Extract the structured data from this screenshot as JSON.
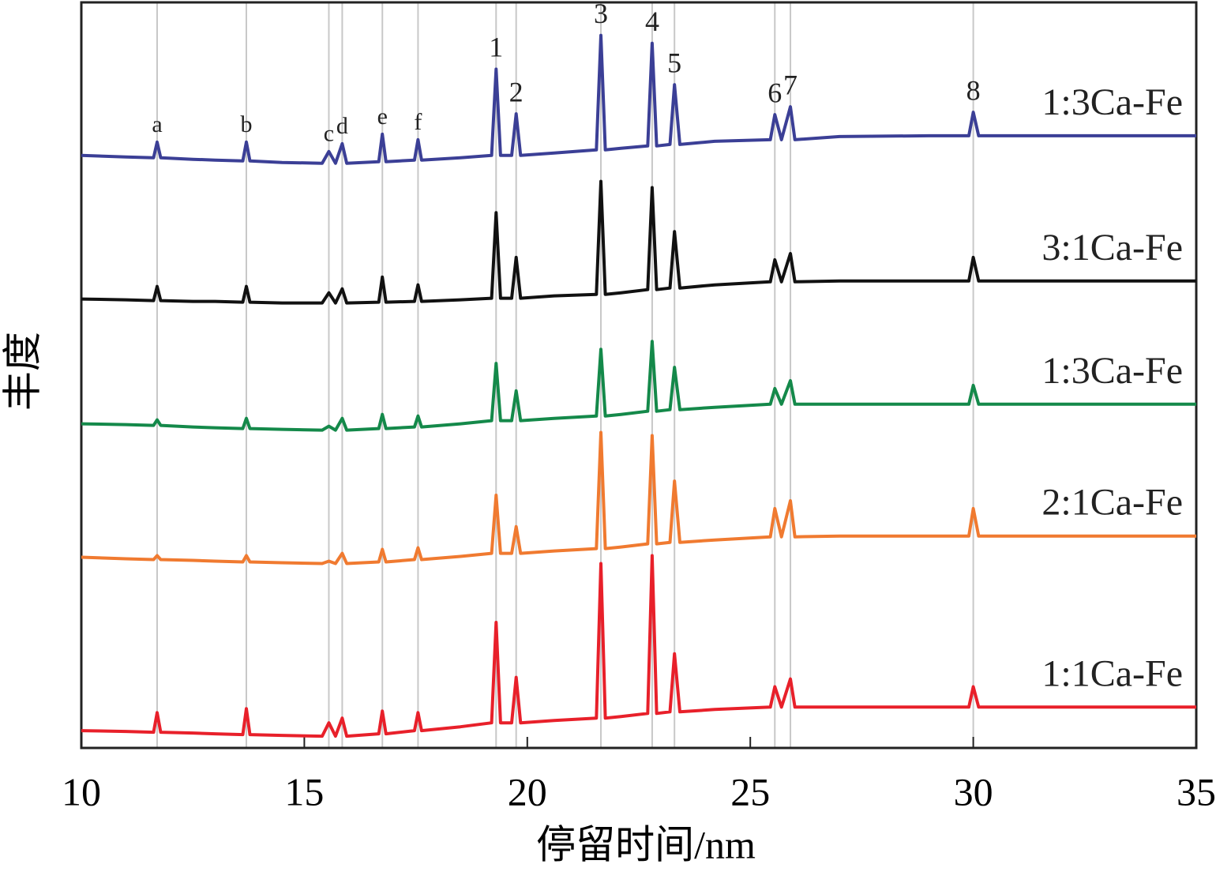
{
  "chart_data": {
    "type": "line",
    "xlabel": "停留时间/nm",
    "ylabel": "丰度",
    "xlim": [
      10,
      35
    ],
    "xticks": [
      10,
      15,
      20,
      25,
      30,
      35
    ],
    "ylim": [
      0,
      950
    ],
    "x": [
      10,
      11,
      11.62,
      11.7,
      11.78,
      12.5,
      13,
      13.62,
      13.7,
      13.78,
      14.5,
      15.4,
      15.55,
      15.7,
      15.85,
      15.95,
      16.67,
      16.75,
      16.83,
      17.47,
      17.55,
      17.63,
      18.5,
      19.2,
      19.3,
      19.4,
      19.65,
      19.75,
      19.85,
      20.6,
      21.55,
      21.65,
      21.75,
      22.1,
      22.7,
      22.8,
      22.9,
      23.2,
      23.3,
      23.42,
      24.2,
      25.45,
      25.55,
      25.7,
      25.9,
      26.0,
      27,
      29,
      29.9,
      30.0,
      30.12,
      35
    ],
    "series": [
      {
        "name": "1:3Ca-Fe",
        "color": "#3b3f96",
        "values": [
          755,
          753,
          752,
          772,
          752,
          750,
          749,
          748,
          772,
          748,
          746,
          745,
          760,
          745,
          770,
          745,
          747,
          782,
          747,
          749,
          775,
          749,
          752,
          755,
          865,
          755,
          755,
          808,
          755,
          758,
          762,
          908,
          762,
          764,
          767,
          898,
          767,
          769,
          845,
          769,
          773,
          775,
          807,
          775,
          817,
          775,
          779,
          780,
          780,
          810,
          780,
          780
        ]
      },
      {
        "name": "3:1Ca-Fe",
        "color": "#111111",
        "values": [
          572,
          571,
          570,
          588,
          570,
          569,
          569,
          568,
          588,
          568,
          567,
          567,
          580,
          567,
          585,
          567,
          568,
          600,
          568,
          569,
          590,
          569,
          571,
          573,
          682,
          573,
          573,
          625,
          573,
          576,
          578,
          722,
          578,
          580,
          584,
          714,
          584,
          586,
          658,
          586,
          590,
          594,
          622,
          594,
          630,
          594,
          595,
          595,
          595,
          625,
          595,
          595
        ]
      },
      {
        "name": "1:3Ca-Fe",
        "color": "#14894a",
        "values": [
          413,
          412,
          411,
          418,
          411,
          409,
          408,
          407,
          420,
          407,
          406,
          405,
          410,
          405,
          420,
          405,
          407,
          425,
          407,
          409,
          423,
          409,
          413,
          417,
          490,
          417,
          417,
          455,
          417,
          420,
          423,
          508,
          423,
          425,
          429,
          518,
          429,
          431,
          485,
          431,
          434,
          438,
          458,
          438,
          468,
          438,
          438,
          438,
          438,
          462,
          438,
          438
        ]
      },
      {
        "name": "2:1Ca-Fe",
        "color": "#f07a30",
        "values": [
          243,
          241,
          240,
          245,
          240,
          239,
          238,
          237,
          245,
          237,
          236,
          235,
          238,
          235,
          248,
          235,
          237,
          253,
          237,
          240,
          255,
          240,
          244,
          248,
          322,
          248,
          248,
          282,
          248,
          251,
          254,
          402,
          254,
          256,
          260,
          398,
          260,
          262,
          340,
          262,
          265,
          269,
          305,
          269,
          315,
          269,
          270,
          270,
          270,
          305,
          270,
          270
        ]
      },
      {
        "name": "1:1Ca-Fe",
        "color": "#e8202a",
        "values": [
          22,
          21,
          20,
          45,
          20,
          19,
          18,
          17,
          50,
          17,
          16,
          15,
          32,
          15,
          38,
          15,
          18,
          47,
          18,
          22,
          45,
          22,
          27,
          32,
          160,
          32,
          32,
          90,
          32,
          35,
          38,
          235,
          38,
          40,
          44,
          245,
          44,
          46,
          120,
          46,
          49,
          52,
          78,
          52,
          88,
          52,
          52,
          52,
          52,
          78,
          52,
          52
        ]
      }
    ],
    "annotations": [
      {
        "x": 11.7,
        "label": "a"
      },
      {
        "x": 13.7,
        "label": "b"
      },
      {
        "x": 15.55,
        "label": "c"
      },
      {
        "x": 15.85,
        "label": "d"
      },
      {
        "x": 16.75,
        "label": "e"
      },
      {
        "x": 17.55,
        "label": "f"
      },
      {
        "x": 19.3,
        "label": "1"
      },
      {
        "x": 19.75,
        "label": "2"
      },
      {
        "x": 21.65,
        "label": "3"
      },
      {
        "x": 22.8,
        "label": "4"
      },
      {
        "x": 23.3,
        "label": "5"
      },
      {
        "x": 25.55,
        "label": "6"
      },
      {
        "x": 25.9,
        "label": "7"
      },
      {
        "x": 30.0,
        "label": "8"
      }
    ]
  }
}
